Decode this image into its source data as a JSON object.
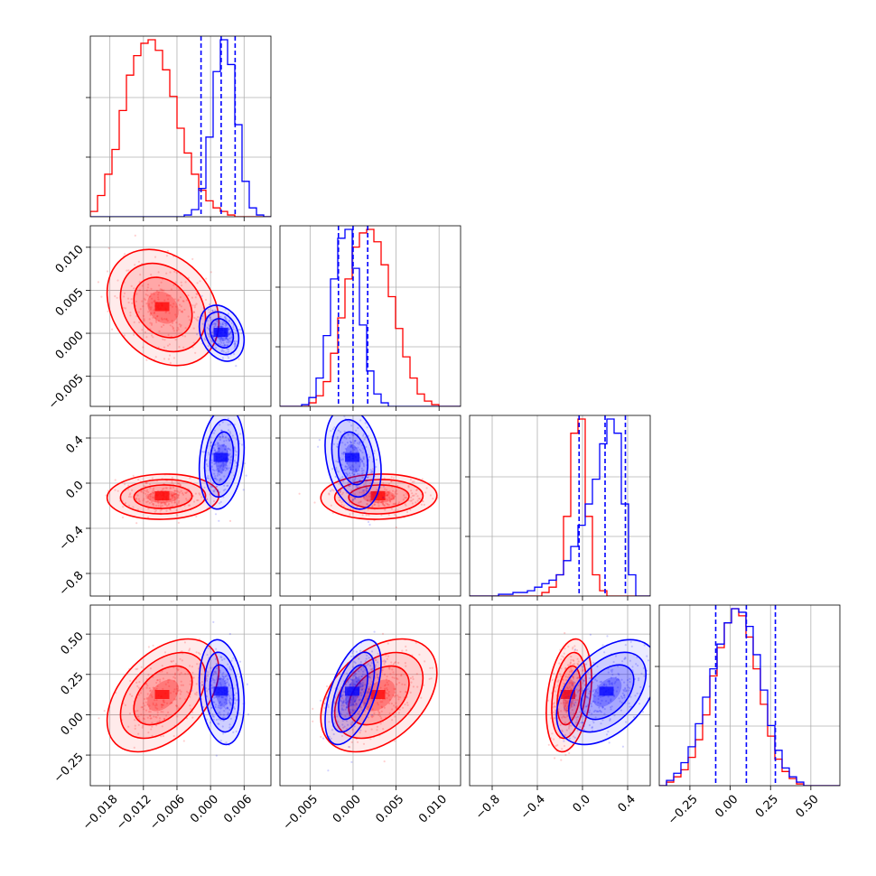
{
  "chart_data": {
    "type": "corner",
    "n_params": 4,
    "grid": true,
    "colors": {
      "series_a": "#ff0000",
      "series_b": "#0000ff",
      "quantile_lines": "#0000ff"
    },
    "axes": [
      {
        "range": [
          -0.0215,
          0.0108
        ],
        "ticks": [
          -0.018,
          -0.012,
          -0.006,
          0.0,
          0.006
        ],
        "tick_labels": [
          "−0.018",
          "−0.012",
          "−0.006",
          "0.000",
          "0.006"
        ]
      },
      {
        "range": [
          -0.0085,
          0.0125
        ],
        "ticks": [
          -0.005,
          0.0,
          0.005,
          0.01
        ],
        "tick_labels": [
          "−0.005",
          "0.000",
          "0.005",
          "0.010"
        ]
      },
      {
        "range": [
          -1.0,
          0.6
        ],
        "ticks": [
          -0.8,
          -0.4,
          0.0,
          0.4
        ],
        "tick_labels": [
          "−0.8",
          "−0.4",
          "0.0",
          "0.4"
        ]
      },
      {
        "range": [
          -0.44,
          0.68
        ],
        "ticks": [
          -0.25,
          0.0,
          0.25,
          0.5
        ],
        "tick_labels": [
          "−0.25",
          "0.00",
          "0.25",
          "0.50"
        ]
      }
    ],
    "quantiles_series_b": [
      [
        -0.0017,
        0.0019,
        0.0044
      ],
      [
        -0.0017,
        0.0,
        0.0017
      ],
      [
        -0.03,
        0.2,
        0.38
      ],
      [
        -0.09,
        0.1,
        0.28
      ]
    ],
    "series": [
      {
        "key": "a",
        "color": "#ff0000",
        "mean": [
          -0.0085,
          0.003,
          -0.12,
          0.12
        ],
        "sd": [
          0.004,
          0.0027,
          0.08,
          0.14
        ],
        "corr": [
          [
            1,
            -0.25,
            0.05,
            0.45
          ],
          [
            -0.25,
            1,
            0.05,
            0.4
          ],
          [
            0.05,
            0.05,
            1,
            0.3
          ],
          [
            0.45,
            0.4,
            0.3,
            1
          ]
        ],
        "hist": [
          [
            0.03,
            0.12,
            0.24,
            0.38,
            0.6,
            0.8,
            0.91,
            0.98,
            1.0,
            0.94,
            0.83,
            0.68,
            0.5,
            0.36,
            0.24,
            0.15,
            0.09,
            0.05,
            0.03,
            0.01,
            0.0,
            0.0,
            0.0,
            0.0,
            0.0
          ],
          [
            0.0,
            0.0,
            0.0,
            0.0,
            0.02,
            0.06,
            0.14,
            0.3,
            0.5,
            0.72,
            0.9,
            0.98,
            1.0,
            0.93,
            0.8,
            0.62,
            0.44,
            0.28,
            0.16,
            0.07,
            0.03,
            0.01,
            0.0,
            0.0,
            0.0
          ],
          [
            0.0,
            0.0,
            0.0,
            0.0,
            0.0,
            0.0,
            0.0,
            0.0,
            0.0,
            0.0,
            0.02,
            0.05,
            0.12,
            0.45,
            0.92,
            1.0,
            0.45,
            0.12,
            0.03,
            0.0,
            0.0,
            0.0,
            0.0,
            0.0,
            0.0
          ],
          [
            0.0,
            0.02,
            0.05,
            0.09,
            0.16,
            0.26,
            0.4,
            0.62,
            0.78,
            0.92,
            1.0,
            0.96,
            0.84,
            0.66,
            0.46,
            0.28,
            0.15,
            0.08,
            0.04,
            0.01,
            0.0,
            0.0,
            0.0,
            0.0,
            0.0
          ]
        ]
      },
      {
        "key": "b",
        "color": "#0000ff",
        "mean": [
          0.002,
          0.0,
          0.22,
          0.14
        ],
        "sd": [
          0.0016,
          0.0013,
          0.18,
          0.13
        ],
        "corr": [
          [
            1,
            -0.25,
            0.2,
            -0.2
          ],
          [
            -0.25,
            1,
            -0.25,
            0.55
          ],
          [
            0.2,
            -0.25,
            1,
            0.45
          ],
          [
            -0.2,
            0.55,
            0.45,
            1
          ]
        ],
        "hist": [
          [
            0.0,
            0.0,
            0.0,
            0.0,
            0.0,
            0.0,
            0.0,
            0.0,
            0.0,
            0.0,
            0.0,
            0.0,
            0.0,
            0.01,
            0.04,
            0.16,
            0.45,
            0.82,
            1.0,
            0.86,
            0.52,
            0.2,
            0.05,
            0.01,
            0.0
          ],
          [
            0.0,
            0.0,
            0.0,
            0.01,
            0.05,
            0.16,
            0.4,
            0.72,
            0.95,
            1.0,
            0.78,
            0.46,
            0.2,
            0.07,
            0.02,
            0.0,
            0.0,
            0.0,
            0.0,
            0.0,
            0.0,
            0.0,
            0.0,
            0.0,
            0.0
          ],
          [
            0.0,
            0.0,
            0.0,
            0.0,
            0.01,
            0.01,
            0.02,
            0.02,
            0.03,
            0.05,
            0.07,
            0.09,
            0.12,
            0.2,
            0.28,
            0.4,
            0.52,
            0.66,
            0.86,
            1.0,
            0.92,
            0.52,
            0.12,
            0.0,
            0.0
          ],
          [
            0.0,
            0.03,
            0.07,
            0.13,
            0.22,
            0.35,
            0.5,
            0.66,
            0.8,
            0.92,
            1.0,
            0.98,
            0.9,
            0.74,
            0.54,
            0.34,
            0.2,
            0.1,
            0.05,
            0.02,
            0.0,
            0.0,
            0.0,
            0.0,
            0.0
          ]
        ]
      }
    ]
  }
}
